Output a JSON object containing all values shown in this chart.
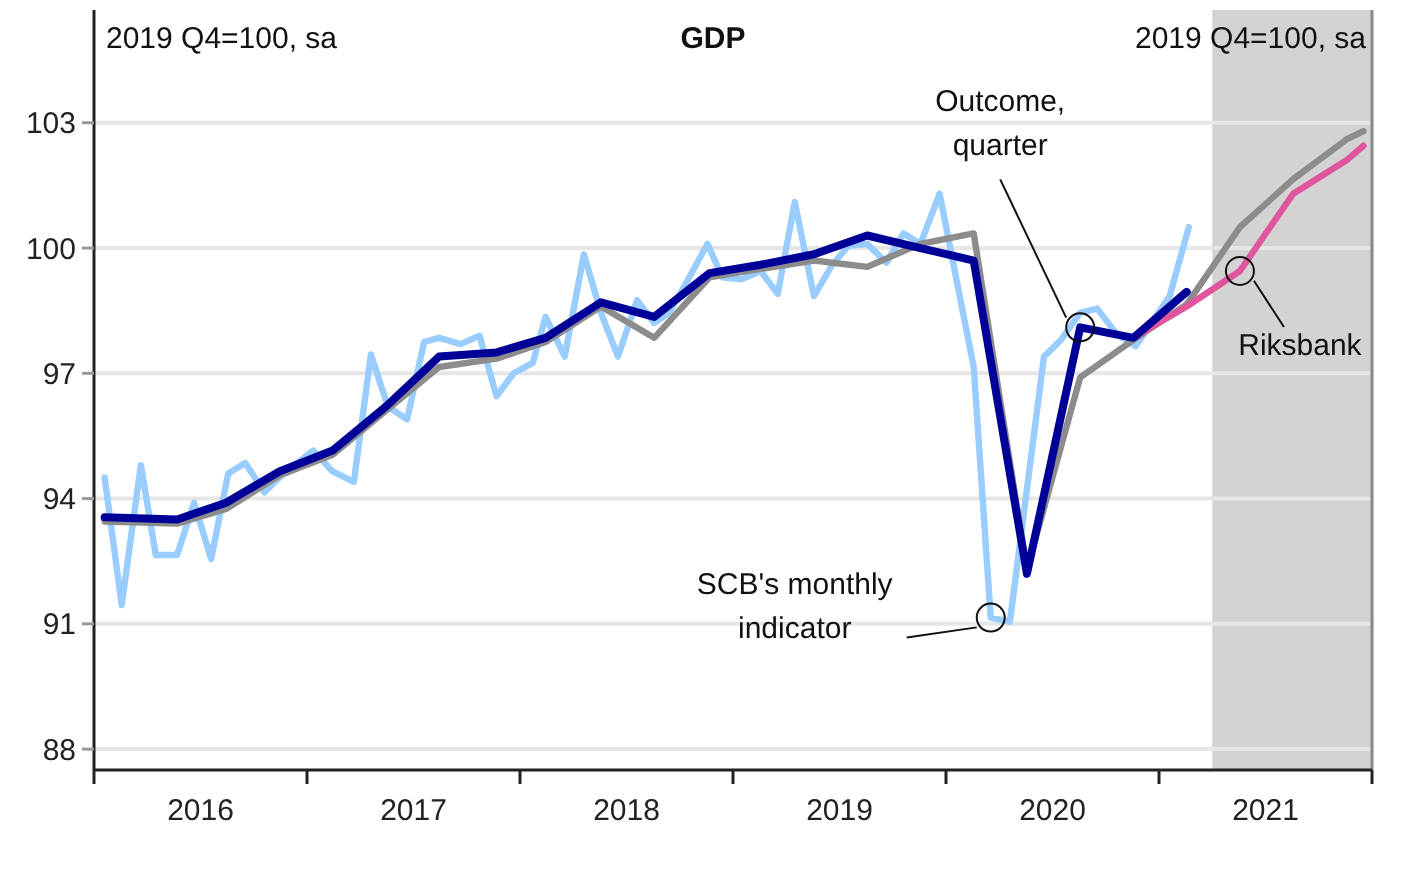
{
  "chart_data": {
    "type": "line",
    "title": "GDP",
    "annotations": [
      "2019 Q4=100, sa",
      "2019 Q4=100, sa",
      {
        "text": "Outcome, quarter",
        "x": 2020.63,
        "y": 98.1
      },
      {
        "text": "SCB's monthly indicator",
        "x": 2020.21,
        "y": 91.15
      },
      {
        "text": "Riksbank",
        "x": 2021.38,
        "y": 99.45
      }
    ],
    "series": [
      {
        "color": "#99ccff",
        "x": [
          2016.05,
          2016.13,
          2016.22,
          2016.29,
          2016.39,
          2016.47,
          2016.55,
          2016.63,
          2016.71,
          2016.8,
          2016.89,
          2017.03,
          2017.12,
          2017.22,
          2017.3,
          2017.38,
          2017.47,
          2017.55,
          2017.62,
          2017.72,
          2017.81,
          2017.89,
          2017.97,
          2018.06,
          2018.12,
          2018.21,
          2018.3,
          2018.38,
          2018.46,
          2018.55,
          2018.63,
          2018.7,
          2018.79,
          2018.88,
          2018.95,
          2019.04,
          2019.13,
          2019.21,
          2019.29,
          2019.38,
          2019.46,
          2019.54,
          2019.63,
          2019.72,
          2019.8,
          2019.88,
          2019.97,
          2020.13,
          2020.21,
          2020.3,
          2020.46,
          2020.54,
          2020.63,
          2020.71,
          2020.8,
          2020.89,
          2020.97,
          2021.05,
          2021.14
        ],
        "values": [
          94.5,
          91.45,
          94.8,
          92.65,
          92.65,
          93.9,
          92.55,
          94.6,
          94.85,
          94.15,
          94.6,
          95.15,
          94.65,
          94.4,
          97.45,
          96.2,
          95.9,
          97.75,
          97.85,
          97.7,
          97.9,
          96.45,
          97.0,
          97.25,
          98.35,
          97.4,
          99.85,
          98.45,
          97.4,
          98.75,
          98.2,
          98.45,
          99.25,
          100.1,
          99.3,
          99.25,
          99.45,
          98.9,
          101.1,
          98.85,
          99.55,
          100.05,
          100.1,
          99.65,
          100.35,
          100.1,
          101.3,
          97.15,
          91.15,
          91.05,
          97.4,
          97.8,
          98.45,
          98.55,
          97.95,
          97.65,
          98.25,
          98.85,
          100.5
        ]
      },
      {
        "color": "#8c8c8c",
        "x": [
          2016.05,
          2016.39,
          2016.62,
          2016.87,
          2017.12,
          2017.37,
          2017.62,
          2017.89,
          2018.12,
          2018.38,
          2018.63,
          2018.89,
          2019.13,
          2019.38,
          2019.63,
          2019.88,
          2020.13,
          2020.38,
          2020.63,
          2020.88,
          2021.13,
          2021.38,
          2021.63,
          2021.88,
          2021.96
        ],
        "values": [
          93.45,
          93.4,
          93.75,
          94.55,
          95.05,
          96.1,
          97.15,
          97.35,
          97.75,
          98.6,
          97.85,
          99.3,
          99.5,
          99.7,
          99.55,
          100.1,
          100.35,
          92.3,
          96.9,
          97.8,
          98.65,
          100.5,
          101.65,
          102.6,
          102.8
        ]
      },
      {
        "color": "#e0569e",
        "x": [
          2020.88,
          2021.13,
          2021.38,
          2021.63,
          2021.88,
          2021.96
        ],
        "values": [
          97.85,
          98.6,
          99.45,
          101.3,
          102.1,
          102.45
        ]
      },
      {
        "color": "#000099",
        "x": [
          2016.05,
          2016.39,
          2016.62,
          2016.87,
          2017.12,
          2017.37,
          2017.62,
          2017.89,
          2018.12,
          2018.38,
          2018.63,
          2018.89,
          2019.13,
          2019.38,
          2019.63,
          2019.88,
          2020.13,
          2020.38,
          2020.63,
          2020.88,
          2021.13
        ],
        "values": [
          93.55,
          93.5,
          93.9,
          94.65,
          95.15,
          96.2,
          97.4,
          97.5,
          97.85,
          98.7,
          98.35,
          99.4,
          99.6,
          99.85,
          100.3,
          100.0,
          99.7,
          92.2,
          98.1,
          97.85,
          98.95
        ]
      }
    ],
    "bands": [
      {
        "axis": "x",
        "from": 2021.25,
        "to": 2022,
        "color": "#d3d3d3"
      }
    ],
    "xlim": [
      2016,
      2022
    ],
    "xticks": [
      {
        "value": 2016,
        "label": null
      },
      {
        "value": 2016.5,
        "label": "2016"
      },
      {
        "value": 2017,
        "label": null
      },
      {
        "value": 2017.5,
        "label": "2017"
      },
      {
        "value": 2018,
        "label": null
      },
      {
        "value": 2018.5,
        "label": "2018"
      },
      {
        "value": 2019,
        "label": null
      },
      {
        "value": 2019.5,
        "label": "2019"
      },
      {
        "value": 2020,
        "label": null
      },
      {
        "value": 2020.5,
        "label": "2020"
      },
      {
        "value": 2021,
        "label": null
      },
      {
        "value": 2021.5,
        "label": "2021"
      },
      {
        "value": 2022,
        "label": null
      }
    ],
    "ylim": [
      87.5,
      105.7
    ],
    "yticks": [
      88,
      91,
      94,
      97,
      100,
      103
    ],
    "grid": "y",
    "marker": "none",
    "line_style": "solid"
  }
}
